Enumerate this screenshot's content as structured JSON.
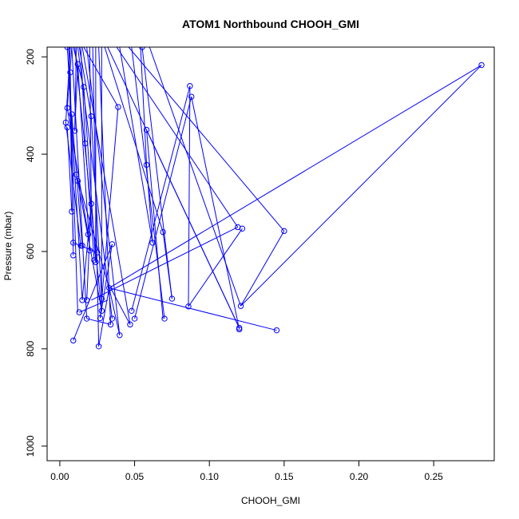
{
  "chart_data": {
    "type": "line",
    "title": "ATOM1 Northbound CHOOH_GMI",
    "xlabel": "CHOOH_GMI",
    "ylabel": "Pressure (mbar)",
    "xlim": [
      -0.0085,
      0.2905
    ],
    "ylim": [
      1030,
      180
    ],
    "y_reversed": true,
    "x_ticks": [
      0.0,
      0.05,
      0.1,
      0.15,
      0.2,
      0.25
    ],
    "x_tick_labels": [
      "0.00",
      "0.05",
      "0.10",
      "0.15",
      "0.20",
      "0.25"
    ],
    "y_ticks": [
      200,
      400,
      600,
      800,
      1000
    ],
    "y_tick_labels": [
      "200",
      "400",
      "600",
      "800",
      "1000"
    ],
    "grid": false,
    "legend": "none",
    "series": [
      {
        "color": "#0000ff",
        "marker": "open-circle",
        "points": [
          [
            0.005,
            180
          ],
          [
            0.005,
            305
          ],
          [
            0.004,
            335
          ],
          [
            0.005,
            345
          ],
          [
            0.007,
            232
          ],
          [
            0.008,
            318
          ],
          [
            0.008,
            518
          ],
          [
            0.009,
            582
          ],
          [
            0.009,
            608
          ],
          [
            0.01,
            352
          ],
          [
            0.011,
            442
          ],
          [
            0.012,
            455
          ],
          [
            0.012,
            215
          ],
          [
            0.013,
            725
          ],
          [
            0.014,
            588
          ],
          [
            0.015,
            700
          ],
          [
            0.015,
            588
          ],
          [
            0.016,
            262
          ],
          [
            0.017,
            378
          ],
          [
            0.018,
            700
          ],
          [
            0.019,
            565
          ],
          [
            0.02,
            598
          ],
          [
            0.021,
            322
          ],
          [
            0.021,
            502
          ],
          [
            0.023,
            618
          ],
          [
            0.024,
            622
          ],
          [
            0.025,
            602
          ],
          [
            0.026,
            795
          ],
          [
            0.027,
            737
          ],
          [
            0.028,
            697
          ],
          [
            0.028,
            722
          ],
          [
            0.033,
            675
          ],
          [
            0.034,
            750
          ],
          [
            0.035,
            738
          ],
          [
            0.035,
            585
          ],
          [
            0.039,
            303
          ],
          [
            0.04,
            772
          ],
          [
            0.047,
            750
          ],
          [
            0.048,
            722
          ],
          [
            0.05,
            738
          ],
          [
            0.055,
            180
          ],
          [
            0.058,
            422
          ],
          [
            0.058,
            350
          ],
          [
            0.062,
            582
          ],
          [
            0.069,
            560
          ],
          [
            0.07,
            738
          ],
          [
            0.075,
            697
          ],
          [
            0.086,
            713
          ],
          [
            0.087,
            260
          ],
          [
            0.088,
            282
          ],
          [
            0.119,
            550
          ],
          [
            0.12,
            757
          ],
          [
            0.12,
            760
          ],
          [
            0.121,
            712
          ],
          [
            0.122,
            553
          ],
          [
            0.145,
            762
          ],
          [
            0.15,
            558
          ],
          [
            0.282,
            217
          ],
          [
            0.009,
            783
          ],
          [
            0.018,
            738
          ]
        ],
        "segments": [
          [
            0.005,
            180,
            0.015,
            700
          ],
          [
            0.006,
            180,
            0.012,
            725
          ],
          [
            0.008,
            180,
            0.018,
            738
          ],
          [
            0.01,
            180,
            0.028,
            722
          ],
          [
            0.012,
            180,
            0.035,
            738
          ],
          [
            0.015,
            180,
            0.047,
            750
          ],
          [
            0.018,
            180,
            0.04,
            772
          ],
          [
            0.022,
            180,
            0.026,
            795
          ],
          [
            0.026,
            180,
            0.034,
            750
          ],
          [
            0.03,
            180,
            0.069,
            560
          ],
          [
            0.04,
            180,
            0.062,
            582
          ],
          [
            0.048,
            180,
            0.07,
            738
          ],
          [
            0.054,
            180,
            0.058,
            422
          ],
          [
            0.055,
            180,
            0.075,
            697
          ],
          [
            0.06,
            180,
            0.121,
            712
          ],
          [
            0.032,
            180,
            0.12,
            757
          ],
          [
            0.038,
            180,
            0.119,
            550
          ],
          [
            0.046,
            180,
            0.15,
            558
          ],
          [
            0.009,
            783,
            0.035,
            585
          ],
          [
            0.013,
            725,
            0.032,
            700
          ],
          [
            0.033,
            675,
            0.145,
            762
          ],
          [
            0.048,
            722,
            0.087,
            260
          ],
          [
            0.05,
            738,
            0.088,
            282
          ],
          [
            0.088,
            282,
            0.12,
            760
          ],
          [
            0.087,
            260,
            0.086,
            713
          ],
          [
            0.086,
            713,
            0.122,
            553
          ],
          [
            0.021,
            700,
            0.119,
            550
          ],
          [
            0.121,
            712,
            0.282,
            217
          ],
          [
            0.121,
            712,
            0.15,
            558
          ],
          [
            0.033,
            675,
            0.282,
            217
          ],
          [
            0.058,
            350,
            0.069,
            738
          ],
          [
            0.058,
            422,
            0.062,
            582
          ],
          [
            0.039,
            303,
            0.027,
            737
          ],
          [
            0.017,
            378,
            0.023,
            618
          ],
          [
            0.021,
            322,
            0.028,
            697
          ],
          [
            0.021,
            502,
            0.018,
            700
          ],
          [
            0.012,
            455,
            0.028,
            722
          ],
          [
            0.011,
            442,
            0.033,
            675
          ],
          [
            0.016,
            262,
            0.024,
            622
          ],
          [
            0.007,
            232,
            0.009,
            608
          ],
          [
            0.008,
            318,
            0.015,
            588
          ],
          [
            0.005,
            305,
            0.019,
            565
          ],
          [
            0.004,
            335,
            0.014,
            588
          ],
          [
            0.005,
            345,
            0.008,
            518
          ],
          [
            0.01,
            352,
            0.012,
            215
          ],
          [
            0.012,
            215,
            0.02,
            598
          ],
          [
            0.009,
            582,
            0.025,
            602
          ],
          [
            0.026,
            795,
            0.033,
            675
          ],
          [
            0.027,
            737,
            0.035,
            585
          ],
          [
            0.04,
            772,
            0.033,
            675
          ],
          [
            0.047,
            750,
            0.034,
            675
          ],
          [
            0.069,
            560,
            0.075,
            697
          ],
          [
            0.12,
            757,
            0.058,
            350
          ],
          [
            0.018,
            738,
            0.034,
            750
          ],
          [
            0.015,
            700,
            0.021,
            502
          ],
          [
            0.008,
            180,
            0.005,
            305
          ],
          [
            0.006,
            180,
            0.009,
            582
          ],
          [
            0.007,
            180,
            0.004,
            335
          ],
          [
            0.009,
            180,
            0.016,
            262
          ],
          [
            0.011,
            180,
            0.01,
            352
          ],
          [
            0.013,
            180,
            0.021,
            322
          ],
          [
            0.014,
            180,
            0.017,
            378
          ],
          [
            0.016,
            180,
            0.039,
            303
          ],
          [
            0.02,
            180,
            0.021,
            502
          ],
          [
            0.024,
            180,
            0.024,
            622
          ],
          [
            0.028,
            180,
            0.028,
            697
          ]
        ]
      }
    ]
  }
}
